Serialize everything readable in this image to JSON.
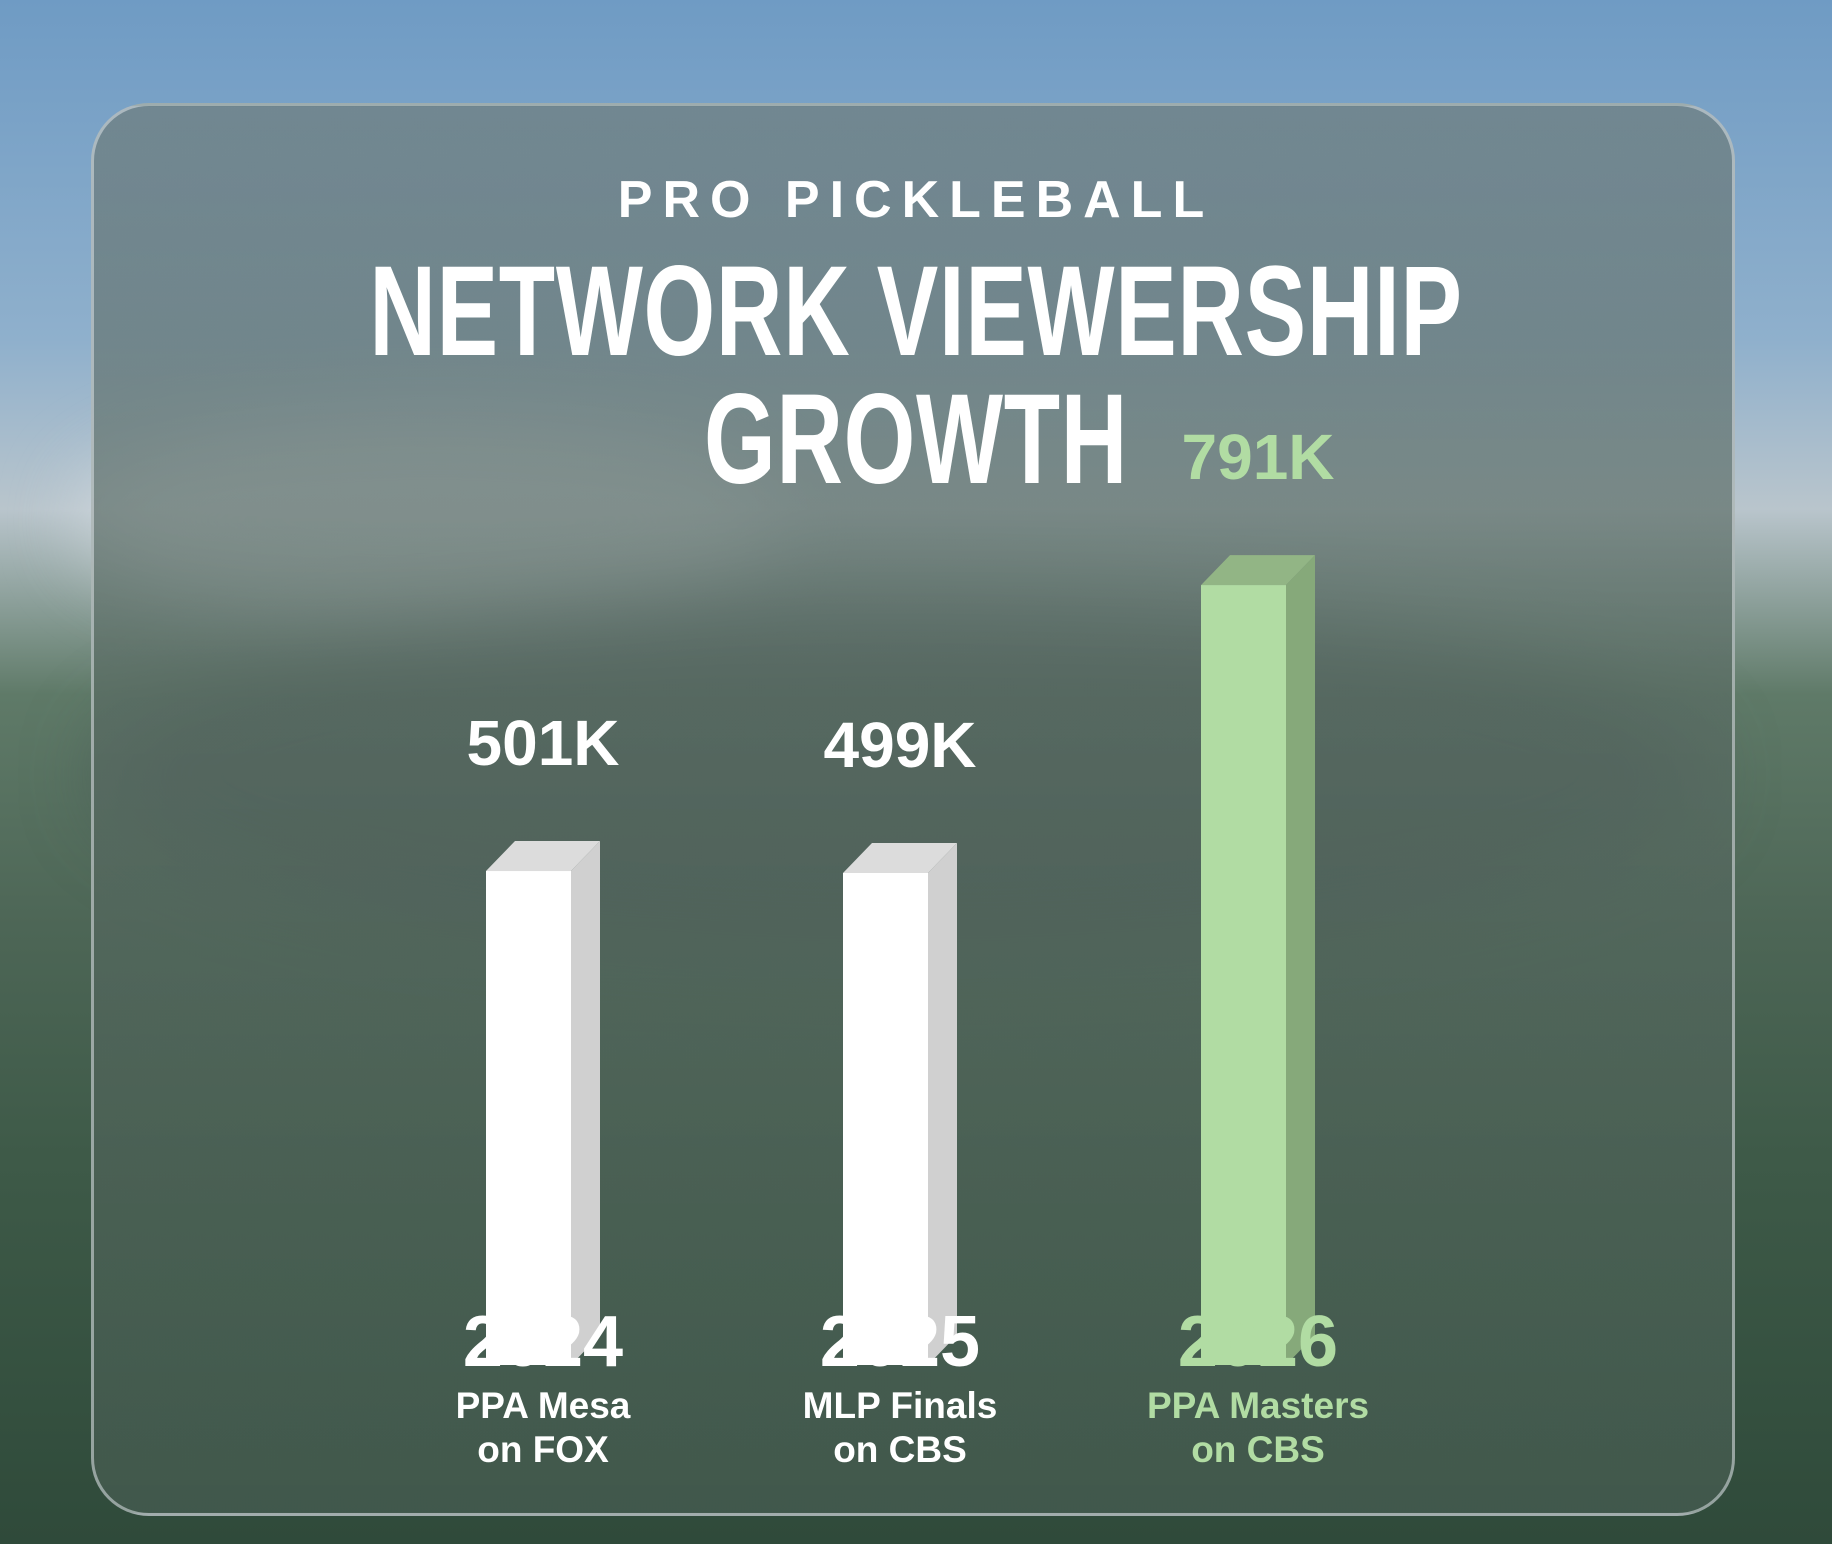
{
  "chart_data": {
    "type": "bar",
    "subtitle": "PRO PICKLEBALL",
    "title": "NETWORK VIEWERSHIP GROWTH",
    "categories": [
      "2024",
      "2025",
      "2026"
    ],
    "events": [
      "PPA Mesa on FOX",
      "MLP Finals on CBS",
      "PPA Masters on CBS"
    ],
    "event_lines": [
      [
        "PPA Mesa",
        "on FOX"
      ],
      [
        "MLP Finals",
        "on CBS"
      ],
      [
        "PPA Masters",
        "on CBS"
      ]
    ],
    "values": [
      501,
      499,
      791
    ],
    "value_labels": [
      "501K",
      "499K",
      "791K"
    ],
    "unit": "K viewers",
    "ylim": [
      0,
      800
    ],
    "grid": false,
    "colors": {
      "default_front": "#ffffff",
      "default_side": "#d0d0d0",
      "default_top": "#dcdcdc",
      "highlight_front": "#b1dca3",
      "highlight_side": "#86a97a",
      "highlight_top": "#92b585",
      "highlight_text": "#b1dca3",
      "text": "#ffffff"
    },
    "highlight_index": 2
  }
}
